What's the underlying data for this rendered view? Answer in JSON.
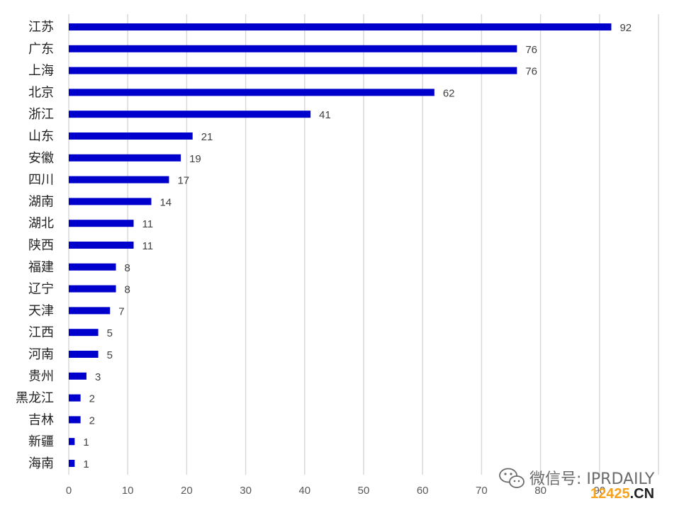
{
  "chart_data": {
    "type": "bar",
    "orientation": "horizontal",
    "categories": [
      "江苏",
      "广东",
      "上海",
      "北京",
      "浙江",
      "山东",
      "安徽",
      "四川",
      "湖南",
      "湖北",
      "陕西",
      "福建",
      "辽宁",
      "天津",
      "江西",
      "河南",
      "贵州",
      "黑龙江",
      "吉林",
      "新疆",
      "海南"
    ],
    "values": [
      92,
      76,
      76,
      62,
      41,
      21,
      19,
      17,
      14,
      11,
      11,
      8,
      8,
      7,
      5,
      5,
      3,
      2,
      2,
      1,
      1
    ],
    "xlim": [
      0,
      100
    ],
    "x_ticks": [
      0,
      10,
      20,
      30,
      40,
      50,
      60,
      70,
      80,
      90
    ],
    "grid": "vertical",
    "data_labels": true,
    "bar_color": "#0000cc",
    "title": "",
    "xlabel": "",
    "ylabel": ""
  },
  "watermark": {
    "text": "微信号: IPRDAILY",
    "site_part1": "12425",
    "site_part2": ".CN",
    "icon": "wechat-icon"
  }
}
